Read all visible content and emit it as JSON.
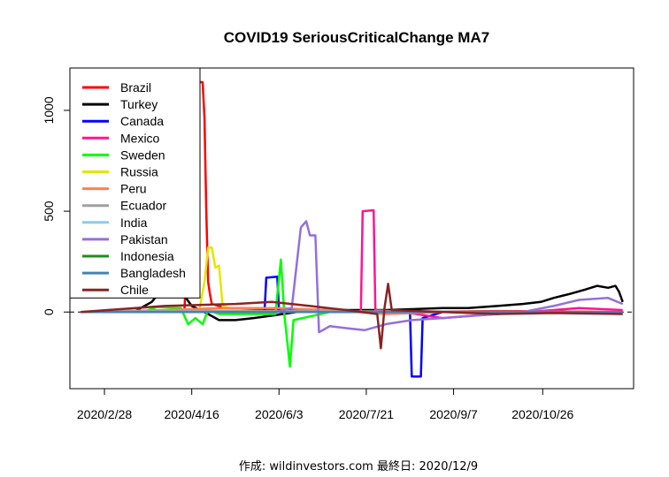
{
  "chart_data": {
    "type": "line",
    "title": "COVID19 SeriousCriticalChange MA7",
    "caption": "作成: wildinvestors.com 最終日: 2020/12/9",
    "xlabel": "",
    "ylabel": "",
    "x_start": "2020-02-15",
    "x_end": "2020-12-09",
    "xlim": [
      "2020-02-09",
      "2020-12-15"
    ],
    "ylim": [
      -380,
      1210
    ],
    "y_ticks": [
      0,
      500,
      1000
    ],
    "x_ticks": [
      "2020/2/28",
      "2020/4/16",
      "2020/6/3",
      "2020/7/21",
      "2020/9/7",
      "2020/10/26"
    ],
    "x_tick_dates": [
      "2020-02-28",
      "2020-04-16",
      "2020-06-03",
      "2020-07-21",
      "2020-09-07",
      "2020-10-26"
    ],
    "zero_line": true,
    "grid": false,
    "legend_position": "top-left",
    "series": [
      {
        "name": "Brazil",
        "color": "#ff0000",
        "points": [
          [
            "2020-02-15",
            0
          ],
          [
            "2020-03-25",
            0
          ],
          [
            "2020-04-12",
            10
          ],
          [
            "2020-04-16",
            900
          ],
          [
            "2020-04-18",
            900
          ],
          [
            "2020-04-19",
            1090
          ],
          [
            "2020-04-20",
            1140
          ],
          [
            "2020-04-22",
            1140
          ],
          [
            "2020-04-23",
            960
          ],
          [
            "2020-04-24",
            500
          ],
          [
            "2020-04-25",
            150
          ],
          [
            "2020-04-26",
            90
          ],
          [
            "2020-04-27",
            40
          ],
          [
            "2020-05-05",
            20
          ],
          [
            "2020-06-01",
            10
          ],
          [
            "2020-08-01",
            0
          ],
          [
            "2020-10-01",
            5
          ],
          [
            "2020-12-09",
            0
          ]
        ]
      },
      {
        "name": "Turkey",
        "color": "#000000",
        "points": [
          [
            "2020-02-15",
            0
          ],
          [
            "2020-03-15",
            0
          ],
          [
            "2020-03-25",
            50
          ],
          [
            "2020-04-02",
            140
          ],
          [
            "2020-04-05",
            120
          ],
          [
            "2020-04-08",
            130
          ],
          [
            "2020-04-12",
            80
          ],
          [
            "2020-04-16",
            30
          ],
          [
            "2020-04-25",
            -10
          ],
          [
            "2020-05-01",
            -40
          ],
          [
            "2020-05-10",
            -40
          ],
          [
            "2020-05-20",
            -30
          ],
          [
            "2020-06-01",
            -15
          ],
          [
            "2020-06-20",
            10
          ],
          [
            "2020-07-10",
            10
          ],
          [
            "2020-08-01",
            10
          ],
          [
            "2020-09-01",
            20
          ],
          [
            "2020-09-15",
            20
          ],
          [
            "2020-10-01",
            30
          ],
          [
            "2020-10-15",
            40
          ],
          [
            "2020-10-25",
            50
          ],
          [
            "2020-11-01",
            70
          ],
          [
            "2020-11-10",
            90
          ],
          [
            "2020-11-18",
            110
          ],
          [
            "2020-11-25",
            130
          ],
          [
            "2020-12-01",
            120
          ],
          [
            "2020-12-05",
            130
          ],
          [
            "2020-12-07",
            100
          ],
          [
            "2020-12-09",
            50
          ]
        ]
      },
      {
        "name": "Canada",
        "color": "#0000ff",
        "points": [
          [
            "2020-02-15",
            0
          ],
          [
            "2020-05-10",
            0
          ],
          [
            "2020-05-26",
            0
          ],
          [
            "2020-05-27",
            170
          ],
          [
            "2020-06-02",
            175
          ],
          [
            "2020-06-03",
            10
          ],
          [
            "2020-08-01",
            0
          ],
          [
            "2020-08-14",
            0
          ],
          [
            "2020-08-15",
            -320
          ],
          [
            "2020-08-20",
            -320
          ],
          [
            "2020-08-21",
            -30
          ],
          [
            "2020-09-01",
            0
          ],
          [
            "2020-12-09",
            0
          ]
        ]
      },
      {
        "name": "Mexico",
        "color": "#ff1493",
        "points": [
          [
            "2020-02-15",
            0
          ],
          [
            "2020-07-18",
            0
          ],
          [
            "2020-07-19",
            500
          ],
          [
            "2020-07-25",
            505
          ],
          [
            "2020-07-26",
            10
          ],
          [
            "2020-08-10",
            0
          ],
          [
            "2020-09-01",
            -30
          ],
          [
            "2020-09-15",
            -20
          ],
          [
            "2020-10-01",
            -10
          ],
          [
            "2020-11-01",
            10
          ],
          [
            "2020-11-15",
            20
          ],
          [
            "2020-12-09",
            10
          ]
        ]
      },
      {
        "name": "Sweden",
        "color": "#00ff00",
        "points": [
          [
            "2020-02-15",
            0
          ],
          [
            "2020-03-20",
            0
          ],
          [
            "2020-03-28",
            25
          ],
          [
            "2020-04-10",
            20
          ],
          [
            "2020-04-14",
            -60
          ],
          [
            "2020-04-18",
            -30
          ],
          [
            "2020-04-22",
            -60
          ],
          [
            "2020-04-25",
            10
          ],
          [
            "2020-05-01",
            -10
          ],
          [
            "2020-06-01",
            -10
          ],
          [
            "2020-06-04",
            260
          ],
          [
            "2020-06-06",
            -20
          ],
          [
            "2020-06-09",
            -270
          ],
          [
            "2020-06-11",
            -40
          ],
          [
            "2020-07-01",
            0
          ],
          [
            "2020-12-09",
            0
          ]
        ]
      },
      {
        "name": "Russia",
        "color": "#e5e500",
        "points": [
          [
            "2020-02-15",
            0
          ],
          [
            "2020-04-20",
            0
          ],
          [
            "2020-04-23",
            150
          ],
          [
            "2020-04-25",
            320
          ],
          [
            "2020-04-27",
            320
          ],
          [
            "2020-04-29",
            220
          ],
          [
            "2020-05-01",
            230
          ],
          [
            "2020-05-03",
            30
          ],
          [
            "2020-05-10",
            10
          ],
          [
            "2020-06-01",
            0
          ],
          [
            "2020-12-09",
            0
          ]
        ]
      },
      {
        "name": "Peru",
        "color": "#ff7f50",
        "points": [
          [
            "2020-02-15",
            0
          ],
          [
            "2020-04-01",
            10
          ],
          [
            "2020-05-01",
            20
          ],
          [
            "2020-06-01",
            20
          ],
          [
            "2020-07-01",
            10
          ],
          [
            "2020-08-01",
            -10
          ],
          [
            "2020-09-01",
            0
          ],
          [
            "2020-12-09",
            0
          ]
        ]
      },
      {
        "name": "Ecuador",
        "color": "#a0a0a0",
        "points": [
          [
            "2020-02-15",
            0
          ],
          [
            "2020-04-10",
            10
          ],
          [
            "2020-05-10",
            5
          ],
          [
            "2020-12-09",
            0
          ]
        ]
      },
      {
        "name": "India",
        "color": "#87ceeb",
        "points": [
          [
            "2020-02-15",
            0
          ],
          [
            "2020-12-09",
            0
          ]
        ]
      },
      {
        "name": "Pakistan",
        "color": "#9370db",
        "points": [
          [
            "2020-02-15",
            0
          ],
          [
            "2020-06-01",
            0
          ],
          [
            "2020-06-10",
            20
          ],
          [
            "2020-06-15",
            420
          ],
          [
            "2020-06-18",
            450
          ],
          [
            "2020-06-20",
            380
          ],
          [
            "2020-06-23",
            380
          ],
          [
            "2020-06-25",
            -100
          ],
          [
            "2020-07-01",
            -70
          ],
          [
            "2020-07-10",
            -80
          ],
          [
            "2020-07-20",
            -90
          ],
          [
            "2020-08-01",
            -60
          ],
          [
            "2020-08-15",
            -40
          ],
          [
            "2020-09-01",
            -30
          ],
          [
            "2020-10-01",
            -10
          ],
          [
            "2020-10-15",
            0
          ],
          [
            "2020-11-01",
            30
          ],
          [
            "2020-11-15",
            60
          ],
          [
            "2020-12-01",
            70
          ],
          [
            "2020-12-09",
            40
          ]
        ]
      },
      {
        "name": "Indonesia",
        "color": "#228b22",
        "points": [
          [
            "2020-02-15",
            0
          ],
          [
            "2020-12-09",
            0
          ]
        ]
      },
      {
        "name": "Bangladesh",
        "color": "#4682b4",
        "points": [
          [
            "2020-02-15",
            0
          ],
          [
            "2020-12-09",
            0
          ]
        ]
      },
      {
        "name": "Chile",
        "color": "#8b2323",
        "points": [
          [
            "2020-02-15",
            0
          ],
          [
            "2020-04-01",
            30
          ],
          [
            "2020-05-10",
            40
          ],
          [
            "2020-05-30",
            50
          ],
          [
            "2020-06-20",
            30
          ],
          [
            "2020-07-10",
            10
          ],
          [
            "2020-07-27",
            -10
          ],
          [
            "2020-07-29",
            -180
          ],
          [
            "2020-07-31",
            20
          ],
          [
            "2020-08-02",
            140
          ],
          [
            "2020-08-04",
            10
          ],
          [
            "2020-09-01",
            0
          ],
          [
            "2020-10-01",
            -10
          ],
          [
            "2020-11-01",
            -5
          ],
          [
            "2020-12-09",
            -10
          ]
        ]
      }
    ]
  }
}
